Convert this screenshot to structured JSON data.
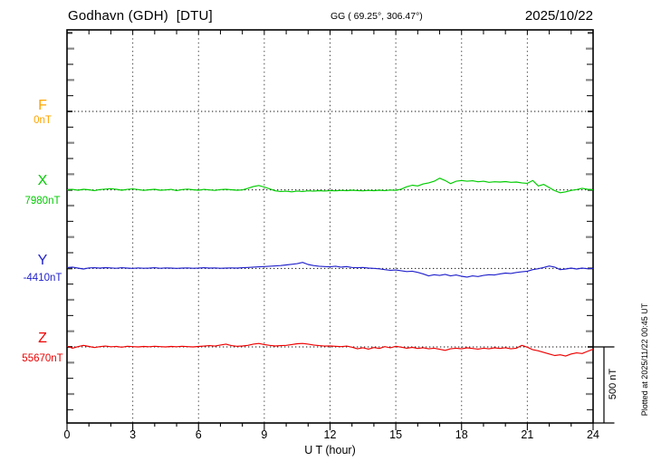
{
  "header": {
    "station": "Godhavn (GDH)  [DTU]",
    "coords": "GG ( 69.25°, 306.47°)",
    "date": "2025/10/22"
  },
  "xaxis": {
    "label": "U T (hour)",
    "tick_labels": [
      "0",
      "3",
      "6",
      "9",
      "12",
      "15",
      "18",
      "21",
      "24"
    ]
  },
  "scale_bar": {
    "label": "500 nT",
    "nT": 500
  },
  "footer_note": "Plotted at 2025/11/22 00:45 UT",
  "chart_data": {
    "type": "line",
    "title": "Godhavn (GDH) [DTU] magnetogram, 2025/10/22",
    "xlabel": "U T (hour)",
    "x_range_hours": [
      0,
      24
    ],
    "x_step_hours": 0.25,
    "x_tick_labels": [
      "0",
      "3",
      "6",
      "9",
      "12",
      "15",
      "18",
      "21",
      "24"
    ],
    "grid_hours": [
      3,
      6,
      9,
      12,
      15,
      18,
      21
    ],
    "grid": "vertical-dotted-every-3h, dotted baseline per component",
    "y_minor_tick_nT": 100,
    "component_spacing_nT": 500,
    "scale_bar_nT": 500,
    "legend_position": "left-margin",
    "series": [
      {
        "name": "F",
        "baseline_label": "0nT",
        "color": "#FFA500",
        "plotted": false,
        "values_nT_offset": []
      },
      {
        "name": "X",
        "baseline_label": "7980nT",
        "color": "#00CC00",
        "plotted": true,
        "values_nT_offset": [
          0,
          3,
          -2,
          4,
          1,
          -4,
          2,
          5,
          8,
          4,
          -2,
          3,
          6,
          2,
          -3,
          1,
          4,
          -2,
          0,
          3,
          -4,
          2,
          5,
          1,
          -2,
          3,
          0,
          -3,
          2,
          4,
          1,
          -2,
          0,
          10,
          22,
          28,
          18,
          6,
          -6,
          -10,
          -8,
          -12,
          -7,
          -10,
          -6,
          -8,
          -5,
          -7,
          -4,
          -6,
          -3,
          -5,
          -2,
          -4,
          -6,
          -3,
          -5,
          -2,
          -4,
          -1,
          -3,
          5,
          20,
          30,
          25,
          38,
          45,
          55,
          75,
          60,
          40,
          55,
          60,
          55,
          58,
          52,
          55,
          48,
          52,
          50,
          53,
          48,
          50,
          45,
          42,
          60,
          25,
          35,
          15,
          -5,
          -18,
          -12,
          -3,
          2,
          10,
          4,
          0
        ]
      },
      {
        "name": "Y",
        "baseline_label": "-4410nT",
        "color": "#2222CC",
        "plotted": true,
        "values_nT_offset": [
          5,
          8,
          2,
          -4,
          3,
          4,
          2,
          5,
          3,
          1,
          4,
          2,
          0,
          3,
          1,
          2,
          4,
          1,
          3,
          2,
          0,
          2,
          3,
          1,
          2,
          4,
          2,
          3,
          1,
          2,
          3,
          2,
          4,
          6,
          8,
          10,
          12,
          14,
          16,
          18,
          22,
          26,
          30,
          38,
          25,
          18,
          14,
          12,
          10,
          14,
          8,
          12,
          6,
          4,
          6,
          2,
          0,
          -3,
          -8,
          -12,
          -10,
          -15,
          -20,
          -18,
          -25,
          -35,
          -48,
          -40,
          -45,
          -38,
          -48,
          -42,
          -50,
          -55,
          -48,
          -52,
          -45,
          -40,
          -42,
          -35,
          -30,
          -32,
          -26,
          -22,
          -18,
          -8,
          -2,
          6,
          15,
          8,
          -8,
          -4,
          2,
          -4,
          2,
          -2,
          0
        ]
      },
      {
        "name": "Z",
        "baseline_label": "55670nT",
        "color": "#EE0000",
        "plotted": true,
        "values_nT_offset": [
          5,
          -8,
          2,
          10,
          3,
          -4,
          2,
          5,
          1,
          3,
          -2,
          4,
          2,
          0,
          3,
          1,
          4,
          2,
          0,
          3,
          1,
          4,
          2,
          0,
          3,
          5,
          8,
          5,
          12,
          18,
          8,
          4,
          6,
          10,
          18,
          22,
          15,
          10,
          6,
          8,
          10,
          15,
          20,
          22,
          18,
          12,
          8,
          5,
          6,
          4,
          2,
          5,
          -2,
          -12,
          -5,
          -14,
          -4,
          -10,
          2,
          -6,
          4,
          -2,
          -8,
          -3,
          -10,
          -5,
          -12,
          -8,
          -15,
          -22,
          -12,
          -8,
          -12,
          -6,
          -10,
          -14,
          -8,
          -12,
          -6,
          -10,
          -5,
          -12,
          -8,
          10,
          -2,
          -18,
          -25,
          -35,
          -45,
          -55,
          -50,
          -58,
          -45,
          -38,
          -42,
          -28,
          -15
        ]
      }
    ]
  }
}
